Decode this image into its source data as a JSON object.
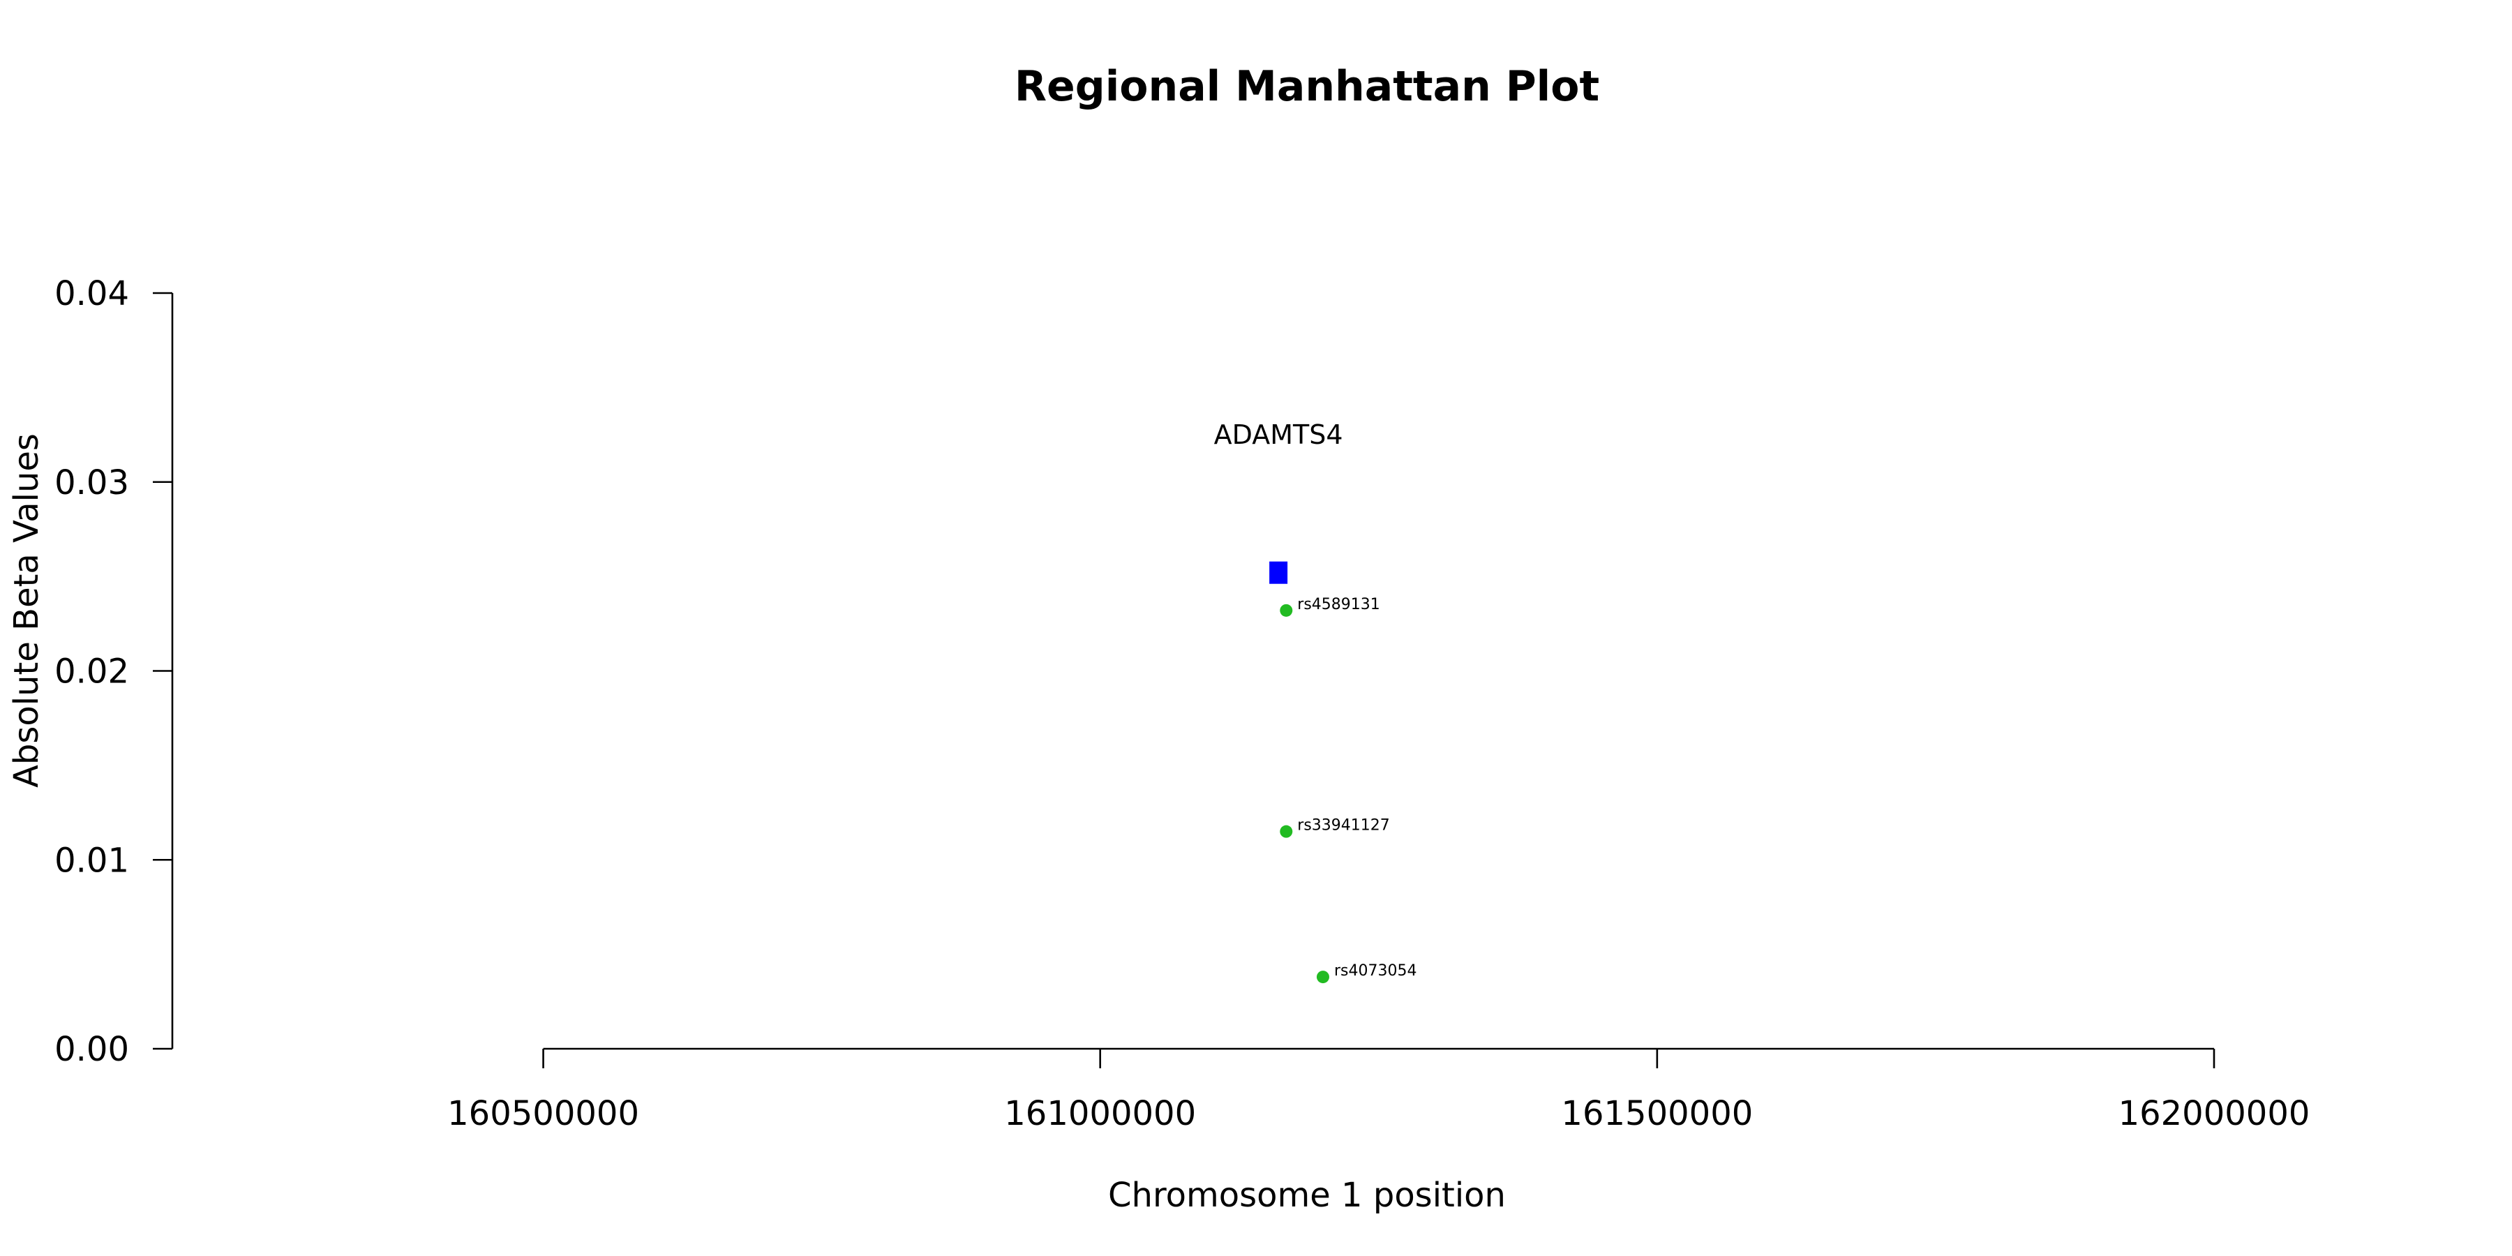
{
  "chart_data": {
    "type": "scatter",
    "title": "Regional Manhattan Plot",
    "xlabel": "Chromosome 1 position",
    "ylabel": "Absolute Beta Values",
    "xlim": [
      160167000,
      162000000
    ],
    "ylim": [
      0,
      0.04
    ],
    "x_ticks": [
      160500000,
      161000000,
      161500000,
      162000000
    ],
    "x_tick_labels": [
      "160500000",
      "161000000",
      "161500000",
      "162000000"
    ],
    "y_ticks": [
      0,
      0.01,
      0.02,
      0.03,
      0.04
    ],
    "y_tick_labels": [
      "0.00",
      "0.01",
      "0.02",
      "0.03",
      "0.04"
    ],
    "gene": {
      "name": "ADAMTS4",
      "x": 161160000,
      "y": 0.0252,
      "label_y": 0.0325,
      "color": "#0000ff"
    },
    "series": [
      {
        "color": "#22bb22",
        "points": [
          {
            "x": 161167000,
            "y": 0.0232,
            "label": "rs4589131"
          },
          {
            "x": 161167000,
            "y": 0.0115,
            "label": "rs33941127"
          },
          {
            "x": 161200000,
            "y": 0.0038,
            "label": "rs4073054"
          }
        ]
      }
    ],
    "grid": false,
    "legend": "none"
  }
}
